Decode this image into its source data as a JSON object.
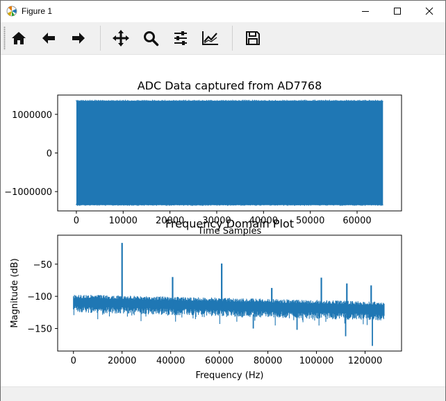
{
  "window": {
    "title": "Figure 1"
  },
  "toolbar": {
    "buttons": [
      {
        "name": "home-icon"
      },
      {
        "name": "back-arrow-icon"
      },
      {
        "name": "forward-arrow-icon"
      },
      {
        "name": "pan-icon"
      },
      {
        "name": "zoom-icon"
      },
      {
        "name": "subplots-icon"
      },
      {
        "name": "edit-axis-icon"
      },
      {
        "name": "save-icon"
      }
    ]
  },
  "colors": {
    "series": "#1f77b4"
  },
  "chart_data": [
    {
      "type": "area",
      "title": "ADC Data captured from AD7768",
      "xlabel": "Time Samples",
      "ylabel": "",
      "xlim": [
        -4000,
        69500
      ],
      "ylim": [
        -1500000,
        1500000
      ],
      "xticks": [
        0,
        10000,
        20000,
        30000,
        40000,
        50000,
        60000
      ],
      "yticks": [
        -1000000,
        0,
        1000000
      ],
      "series": [
        {
          "x_start": 0,
          "x_end": 65536,
          "y_min": -1350000,
          "y_max": 1350000
        }
      ]
    },
    {
      "type": "line",
      "title": "Frequency Domain Plot",
      "xlabel": "Frequency (Hz)",
      "ylabel": "Magnitude (dB)",
      "xlim": [
        -6500,
        135000
      ],
      "ylim": [
        -185,
        -5
      ],
      "xticks": [
        0,
        20000,
        40000,
        60000,
        80000,
        100000,
        120000
      ],
      "yticks": [
        -50,
        -100,
        -150
      ],
      "noise_floor": {
        "x_start": 0,
        "x_end": 128000,
        "upper_db": [
          -97,
          -108
        ],
        "lower_db": [
          -125,
          -138
        ]
      },
      "peaks": [
        {
          "x": 20000,
          "y": -17
        },
        {
          "x": 40800,
          "y": -70
        },
        {
          "x": 61000,
          "y": -49
        },
        {
          "x": 81600,
          "y": -87
        },
        {
          "x": 102000,
          "y": -71
        },
        {
          "x": 112500,
          "y": -80
        },
        {
          "x": 122500,
          "y": -83
        }
      ],
      "dips": [
        {
          "x": 123000,
          "y": -177
        },
        {
          "x": 112000,
          "y": -162
        },
        {
          "x": 92000,
          "y": -152
        },
        {
          "x": 74000,
          "y": -150
        }
      ]
    }
  ]
}
